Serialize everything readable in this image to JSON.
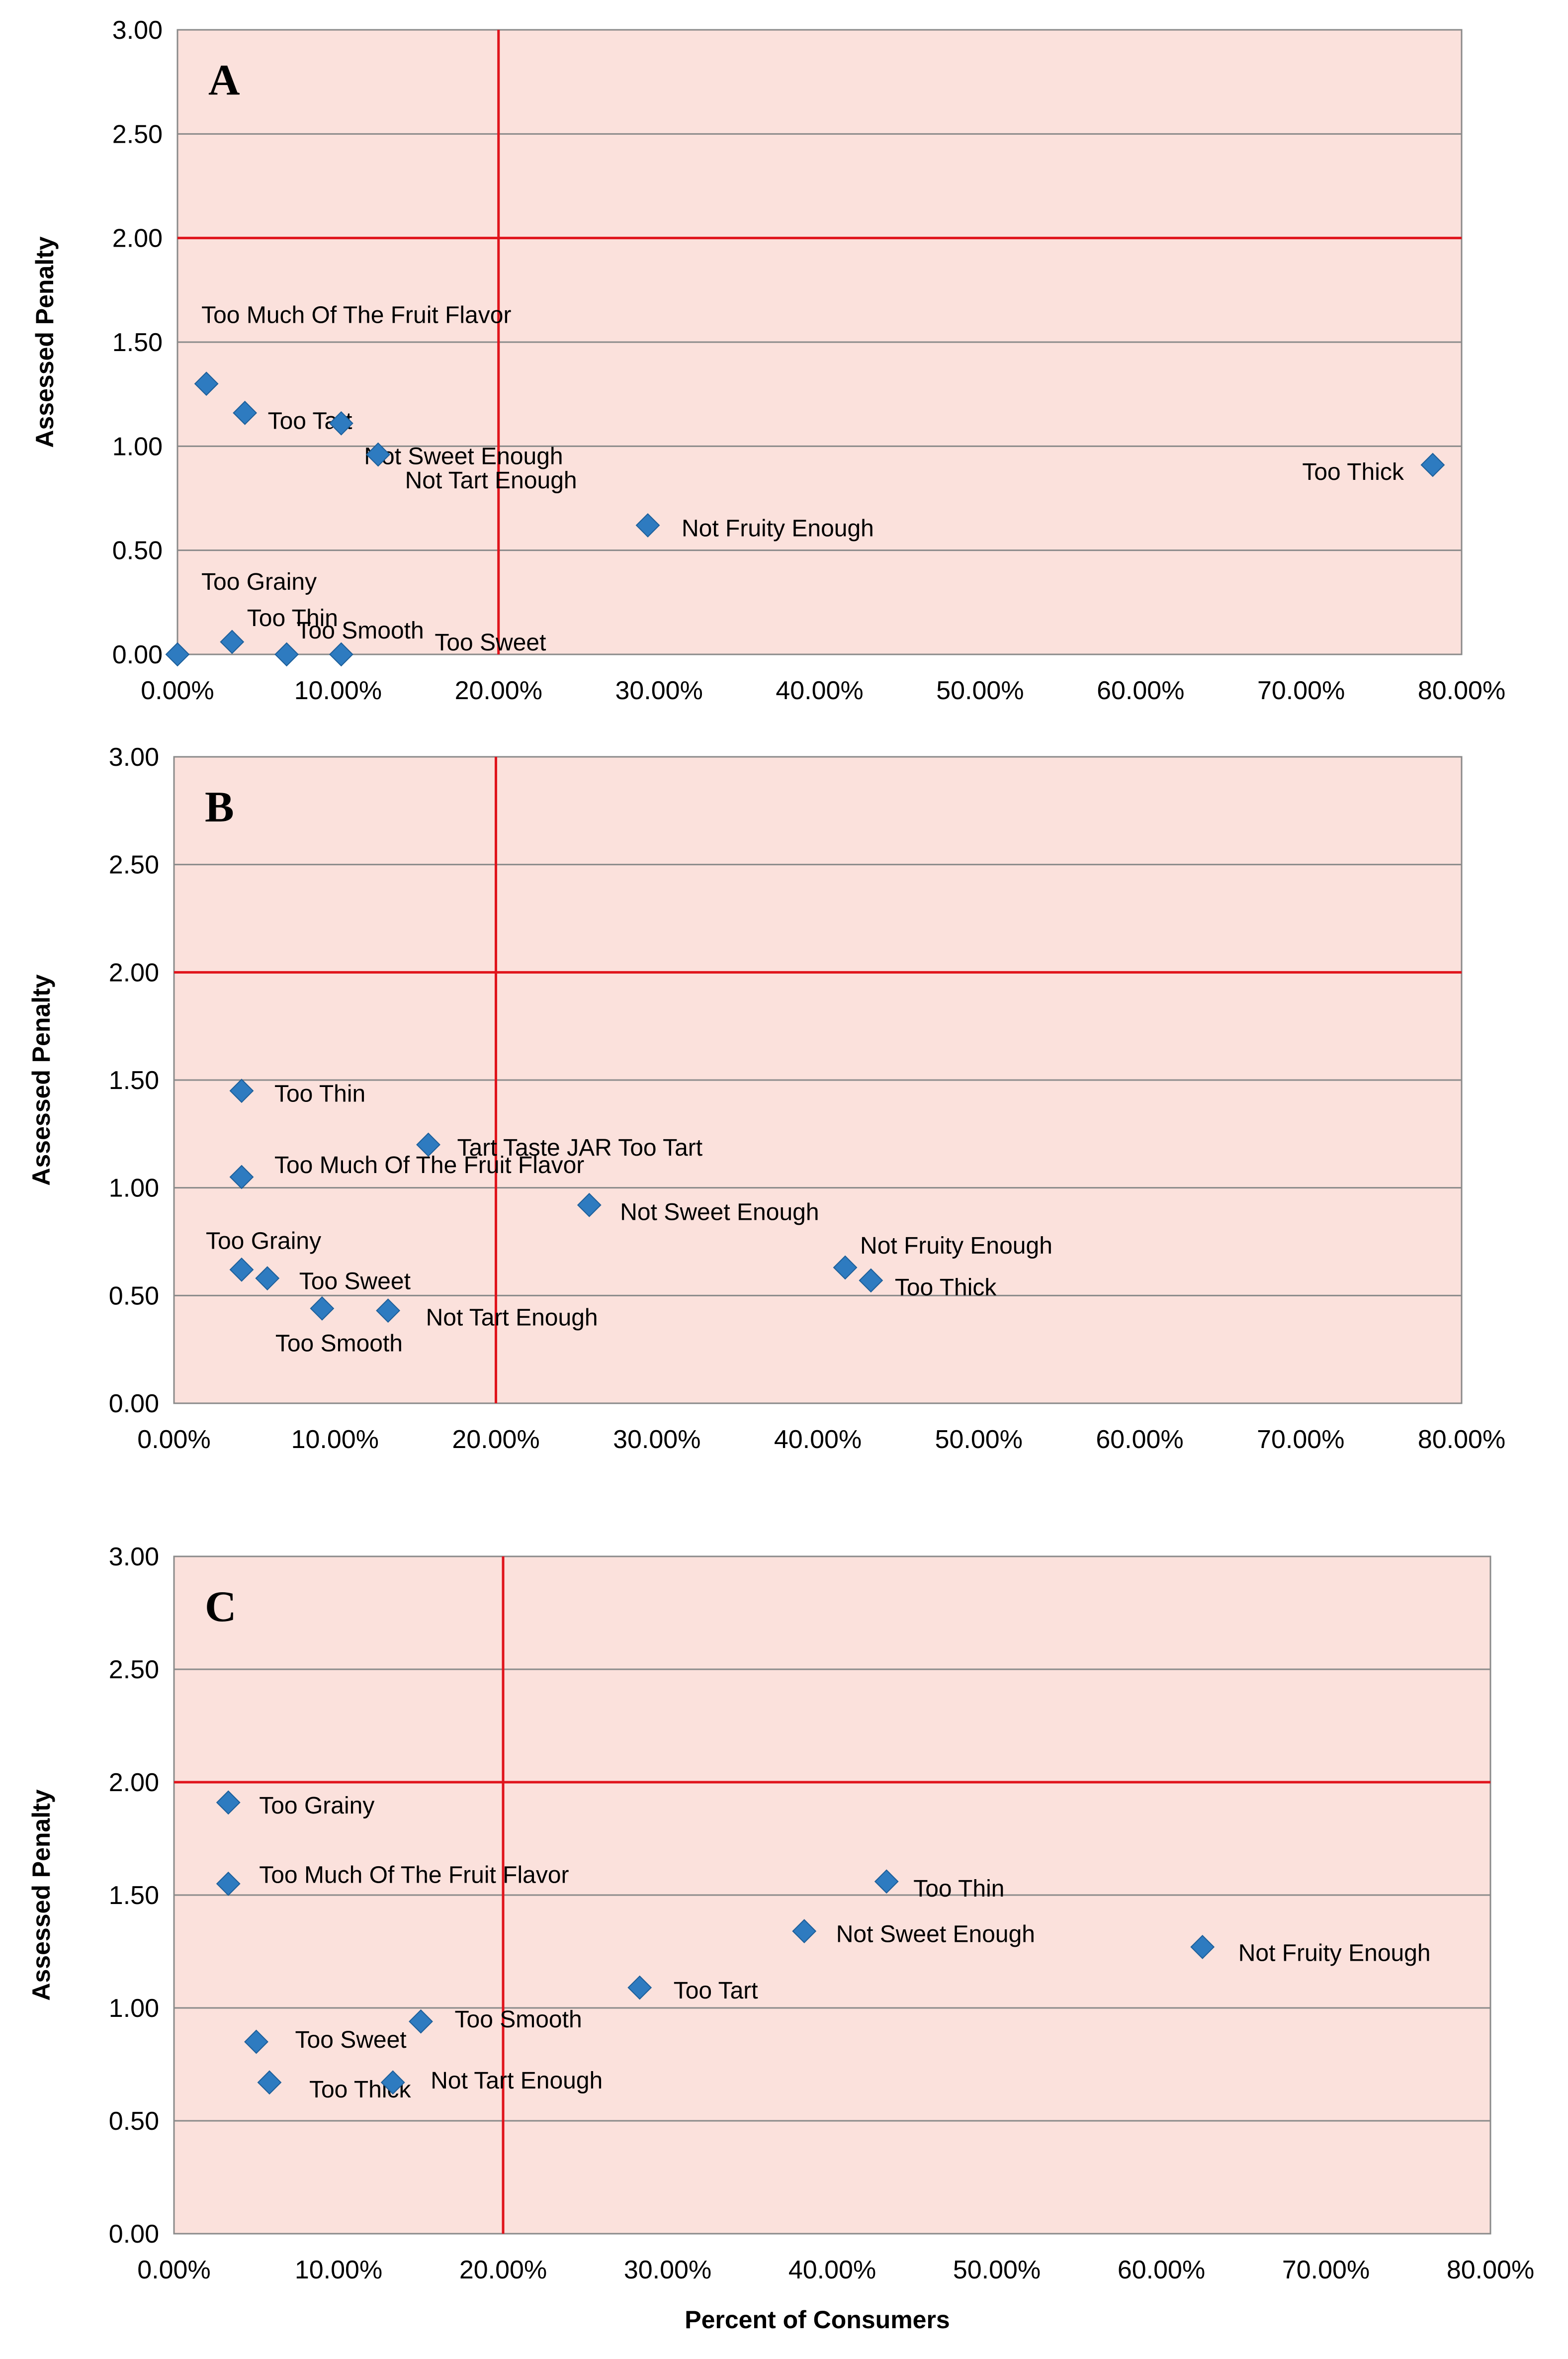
{
  "figure": {
    "x_axis_title": "Percent of Consumers",
    "y_axis_title": "Assessed Penalty"
  },
  "colors": {
    "plot_background": "#fbe1dc",
    "gridline": "#8a8a8a",
    "threshold_line": "#e0141c",
    "marker": "#2e7bc0",
    "marker_edge": "#1c5e99"
  },
  "chart_data": [
    {
      "type": "scatter",
      "title": "A",
      "xlabel": "",
      "ylabel": "Assessed Penalty",
      "xlim": [
        0,
        80
      ],
      "ylim": [
        0,
        3
      ],
      "x_ticks": [
        "0.00%",
        "10.00%",
        "20.00%",
        "30.00%",
        "40.00%",
        "50.00%",
        "60.00%",
        "70.00%",
        "80.00%"
      ],
      "y_ticks": [
        "0.00",
        "0.50",
        "1.00",
        "1.50",
        "2.00",
        "2.50",
        "3.00"
      ],
      "threshold_x": 20,
      "threshold_y": 2,
      "grid": true,
      "points": [
        {
          "label": "Too Much Of The Fruit Flavor",
          "x": 1.8,
          "y": 1.3
        },
        {
          "label": "Too Tart",
          "x": 4.2,
          "y": 1.16
        },
        {
          "label": "Not Sweet Enough",
          "x": 10.2,
          "y": 1.11
        },
        {
          "label": "Not Tart Enough",
          "x": 12.5,
          "y": 0.96
        },
        {
          "label": "Not Fruity Enough",
          "x": 29.3,
          "y": 0.62
        },
        {
          "label": "Too Thick",
          "x": 78.2,
          "y": 0.91
        },
        {
          "label": "Too Grainy",
          "x": 0.0,
          "y": 0.0
        },
        {
          "label": "Too Thin",
          "x": 3.4,
          "y": 0.06
        },
        {
          "label": "Too Smooth",
          "x": 6.8,
          "y": 0.0
        },
        {
          "label": "Too Sweet",
          "x": 10.2,
          "y": 0.0
        }
      ]
    },
    {
      "type": "scatter",
      "title": "B",
      "xlabel": "",
      "ylabel": "Assessed Penalty",
      "xlim": [
        0,
        80
      ],
      "ylim": [
        0,
        3
      ],
      "x_ticks": [
        "0.00%",
        "10.00%",
        "20.00%",
        "30.00%",
        "40.00%",
        "50.00%",
        "60.00%",
        "70.00%",
        "80.00%"
      ],
      "y_ticks": [
        "0.00",
        "0.50",
        "1.00",
        "1.50",
        "2.00",
        "2.50",
        "3.00"
      ],
      "threshold_x": 20,
      "threshold_y": 2,
      "grid": true,
      "points": [
        {
          "label": "Too Thin",
          "x": 4.2,
          "y": 1.45
        },
        {
          "label": "Tart Taste JAR Too Tart",
          "x": 15.8,
          "y": 1.2
        },
        {
          "label": "Too Much Of The Fruit Flavor",
          "x": 4.2,
          "y": 1.05
        },
        {
          "label": "Not Sweet Enough",
          "x": 25.8,
          "y": 0.92
        },
        {
          "label": "Not Fruity Enough",
          "x": 41.7,
          "y": 0.63
        },
        {
          "label": "Too Thick",
          "x": 43.3,
          "y": 0.57
        },
        {
          "label": "Too Grainy",
          "x": 4.2,
          "y": 0.62
        },
        {
          "label": "Too Sweet",
          "x": 5.8,
          "y": 0.58
        },
        {
          "label": "Too Smooth",
          "x": 9.2,
          "y": 0.44
        },
        {
          "label": "Not Tart Enough",
          "x": 13.3,
          "y": 0.43
        }
      ]
    },
    {
      "type": "scatter",
      "title": "C",
      "xlabel": "Percent of Consumers",
      "ylabel": "Assessed Penalty",
      "xlim": [
        0,
        80
      ],
      "ylim": [
        0,
        3
      ],
      "x_ticks": [
        "0.00%",
        "10.00%",
        "20.00%",
        "30.00%",
        "40.00%",
        "50.00%",
        "60.00%",
        "70.00%",
        "80.00%"
      ],
      "y_ticks": [
        "0.00",
        "0.50",
        "1.00",
        "1.50",
        "2.00",
        "2.50",
        "3.00"
      ],
      "threshold_x": 20,
      "threshold_y": 2,
      "grid": true,
      "points": [
        {
          "label": "Too Grainy",
          "x": 3.3,
          "y": 1.91
        },
        {
          "label": "Too Much Of The Fruit Flavor",
          "x": 3.3,
          "y": 1.55
        },
        {
          "label": "Too Thin",
          "x": 43.3,
          "y": 1.56
        },
        {
          "label": "Not Sweet Enough",
          "x": 38.3,
          "y": 1.34
        },
        {
          "label": "Not Fruity Enough",
          "x": 62.5,
          "y": 1.27
        },
        {
          "label": "Too Tart",
          "x": 28.3,
          "y": 1.09
        },
        {
          "label": "Too Smooth",
          "x": 15.0,
          "y": 0.94
        },
        {
          "label": "Too Sweet",
          "x": 5.0,
          "y": 0.85
        },
        {
          "label": "Too Thick",
          "x": 5.8,
          "y": 0.67
        },
        {
          "label": "Not Tart Enough",
          "x": 13.3,
          "y": 0.67
        }
      ]
    }
  ]
}
